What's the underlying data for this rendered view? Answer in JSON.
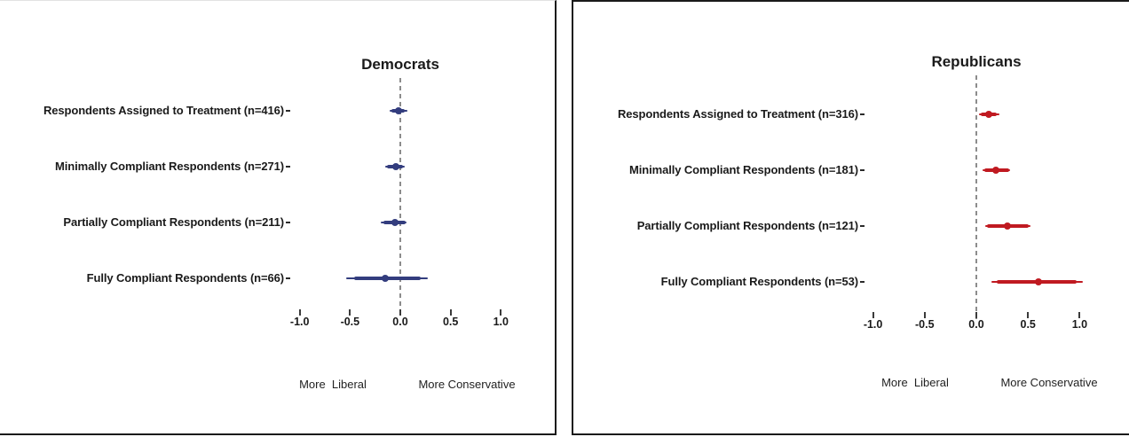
{
  "figure": {
    "background": "#ffffff",
    "border_color": "#1a1a1a",
    "reference_line_color": "#8c8c8c"
  },
  "chart_data": [
    {
      "type": "dot_whisker",
      "title": "Democrats",
      "color": "#333d7e",
      "xlim": [
        -1.3,
        1.3
      ],
      "x_ticks": [
        -1.0,
        -0.5,
        0.0,
        0.5,
        1.0
      ],
      "x_tick_labels": [
        "-1.0",
        "-0.5",
        "0.0",
        "0.5",
        "1.0"
      ],
      "reference_line_x": 0,
      "axis_annotation_left": "More  Liberal",
      "axis_annotation_right": "More Conservative",
      "points": [
        {
          "label": "Respondents Assigned to Treatment (n=416)",
          "estimate": -0.02,
          "ci_inner": [
            -0.09,
            0.04
          ],
          "ci_outer": [
            -0.11,
            0.07
          ]
        },
        {
          "label": "Minimally Compliant Respondents (n=271)",
          "estimate": -0.04,
          "ci_inner": [
            -0.13,
            0.03
          ],
          "ci_outer": [
            -0.15,
            0.04
          ]
        },
        {
          "label": "Partially Compliant Respondents (n=211)",
          "estimate": -0.05,
          "ci_inner": [
            -0.17,
            0.05
          ],
          "ci_outer": [
            -0.19,
            0.06
          ]
        },
        {
          "label": "Fully Compliant Respondents (n=66)",
          "estimate": -0.15,
          "ci_inner": [
            -0.46,
            0.2
          ],
          "ci_outer": [
            -0.54,
            0.27
          ]
        }
      ]
    },
    {
      "type": "dot_whisker",
      "title": "Republicans",
      "color": "#c01a21",
      "xlim": [
        -1.3,
        1.3
      ],
      "x_ticks": [
        -1.0,
        -0.5,
        0.0,
        0.5,
        1.0
      ],
      "x_tick_labels": [
        "-1.0",
        "-0.5",
        "0.0",
        "0.5",
        "1.0"
      ],
      "reference_line_x": 0,
      "axis_annotation_left": "More  Liberal",
      "axis_annotation_right": "More Conservative",
      "points": [
        {
          "label": "Respondents Assigned to Treatment (n=316)",
          "estimate": 0.12,
          "ci_inner": [
            0.04,
            0.2
          ],
          "ci_outer": [
            0.03,
            0.22
          ]
        },
        {
          "label": "Minimally Compliant Respondents (n=181)",
          "estimate": 0.19,
          "ci_inner": [
            0.08,
            0.32
          ],
          "ci_outer": [
            0.06,
            0.33
          ]
        },
        {
          "label": "Partially Compliant Respondents (n=121)",
          "estimate": 0.3,
          "ci_inner": [
            0.1,
            0.51
          ],
          "ci_outer": [
            0.09,
            0.52
          ]
        },
        {
          "label": "Fully Compliant Respondents (n=53)",
          "estimate": 0.6,
          "ci_inner": [
            0.2,
            0.97
          ],
          "ci_outer": [
            0.15,
            1.03
          ]
        }
      ]
    }
  ]
}
